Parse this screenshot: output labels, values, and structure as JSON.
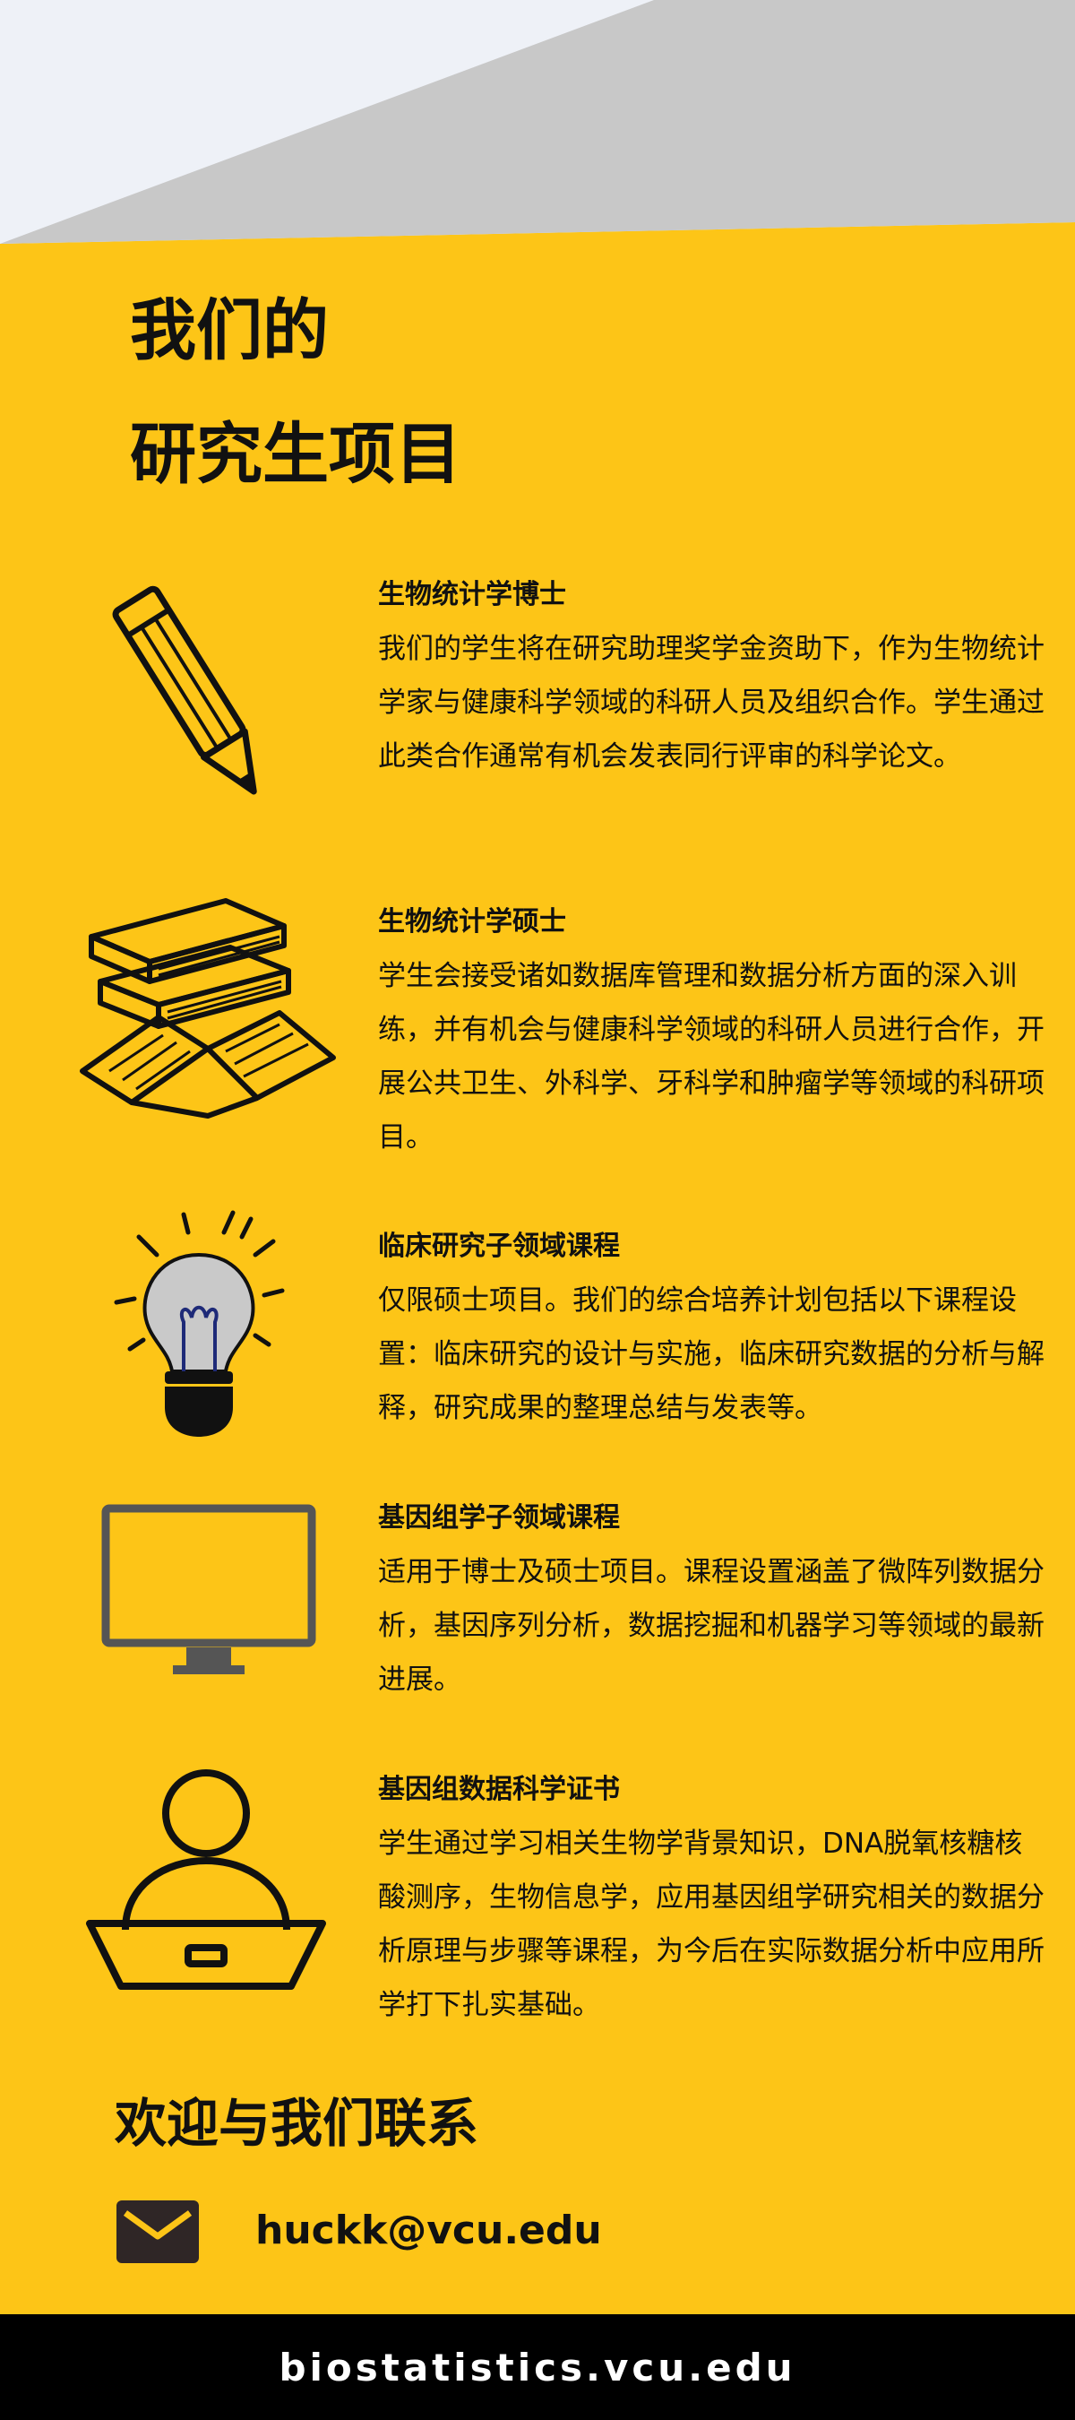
{
  "colors": {
    "background": "#FDC517",
    "banner_light": "#EEF1F7",
    "banner_gray": "#C8C8C8",
    "footer": "#000000",
    "text": "#111111"
  },
  "title": {
    "line1": "我们的",
    "line2": "研究生项目"
  },
  "programs": [
    {
      "icon": "pencil-icon",
      "heading": "生物统计学博士",
      "description": "我们的学生将在研究助理奖学金资助下，作为生物统计学家与健康科学领域的科研人员及组织合作。学生通过此类合作通常有机会发表同行评审的科学论文。"
    },
    {
      "icon": "books-icon",
      "heading": "生物统计学硕士",
      "description": "学生会接受诸如数据库管理和数据分析方面的深入训练，并有机会与健康科学领域的科研人员进行合作，开展公共卫生、外科学、牙科学和肿瘤学等领域的科研项目。"
    },
    {
      "icon": "lightbulb-icon",
      "heading": "临床研究子领域课程",
      "description": "仅限硕士项目。我们的综合培养计划包括以下课程设置：临床研究的设计与实施，临床研究数据的分析与解释，研究成果的整理总结与发表等。"
    },
    {
      "icon": "monitor-icon",
      "heading": "基因组学子领域课程",
      "description": "适用于博士及硕士项目。课程设置涵盖了微阵列数据分析，基因序列分析，数据挖掘和机器学习等领域的最新进展。"
    },
    {
      "icon": "person-laptop-icon",
      "heading": "基因组数据科学证书",
      "description": "学生通过学习相关生物学背景知识，DNA脱氧核糖核酸测序，生物信息学，应用基因组学研究相关的数据分析原理与步骤等课程，为今后在实际数据分析中应用所学打下扎实基础。"
    }
  ],
  "contact": {
    "title": "欢迎与我们联系",
    "icon": "mail-icon",
    "email": "huckk@vcu.edu"
  },
  "footer": {
    "url": "biostatistics.vcu.edu"
  }
}
